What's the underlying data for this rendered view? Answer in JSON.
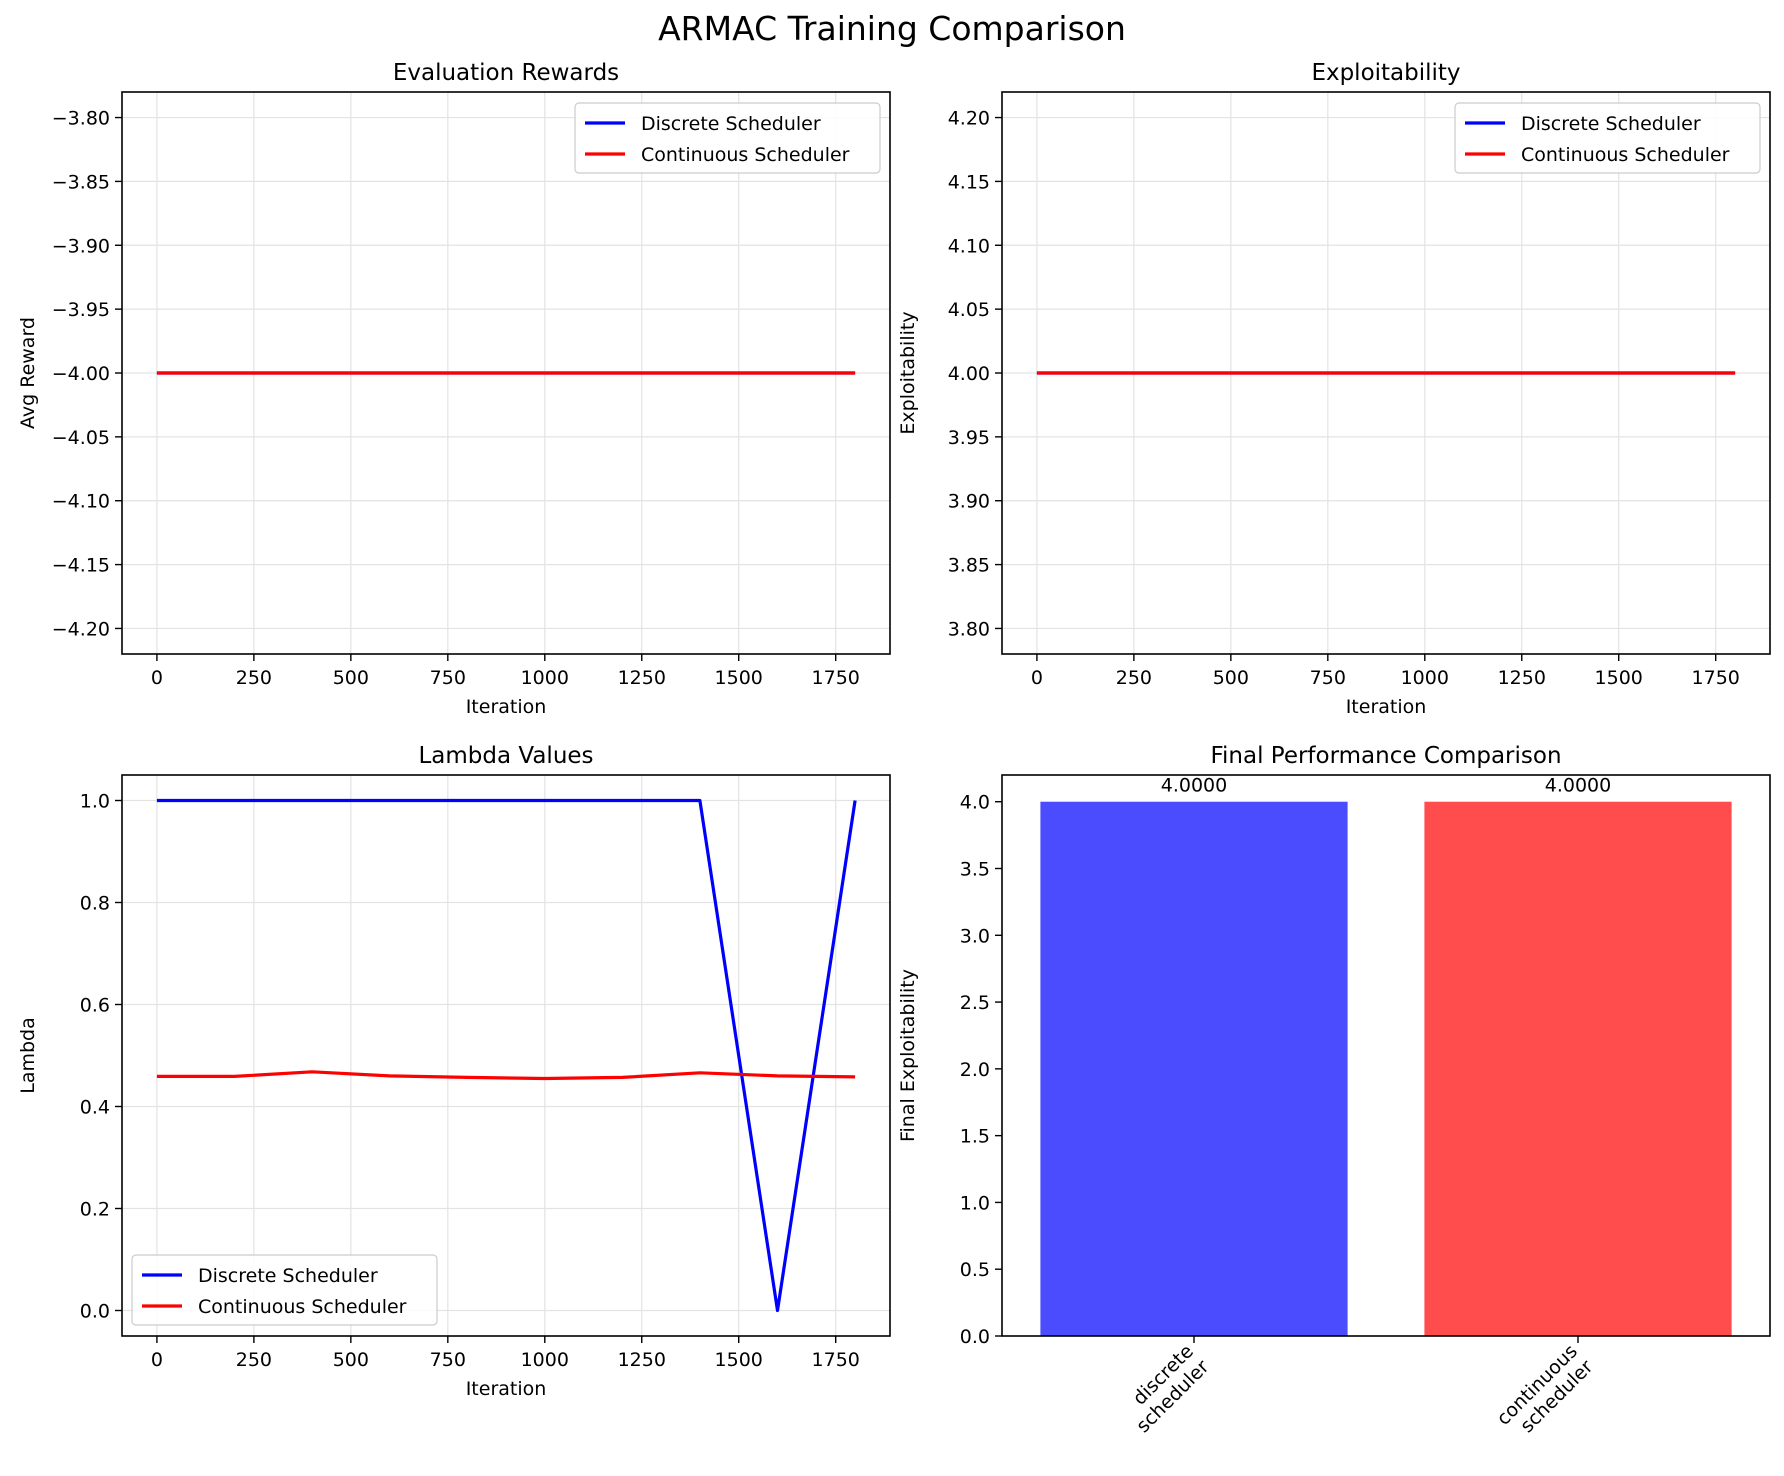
{
  "figure": {
    "title": "ARMAC Training Comparison"
  },
  "chart_data": [
    {
      "type": "line",
      "title": "Evaluation Rewards",
      "xlabel": "Iteration",
      "ylabel": "Avg Reward",
      "xlim": [
        -90,
        1890
      ],
      "ylim": [
        -4.22,
        -3.78
      ],
      "xticks": [
        0,
        250,
        500,
        750,
        1000,
        1250,
        1500,
        1750
      ],
      "yticks": [
        -3.8,
        -3.85,
        -3.9,
        -3.95,
        -4.0,
        -4.05,
        -4.1,
        -4.15,
        -4.2
      ],
      "ytick_labels": [
        "−3.80",
        "−3.85",
        "−3.90",
        "−3.95",
        "−4.00",
        "−4.05",
        "−4.10",
        "−4.15",
        "−4.20"
      ],
      "grid": true,
      "legend": "upper-right",
      "series": [
        {
          "name": "Discrete Scheduler",
          "color": "#0000ff",
          "x": [
            0,
            200,
            400,
            600,
            800,
            1000,
            1200,
            1400,
            1600,
            1800
          ],
          "y": [
            -4,
            -4,
            -4,
            -4,
            -4,
            -4,
            -4,
            -4,
            -4,
            -4
          ]
        },
        {
          "name": "Continuous Scheduler",
          "color": "#ff0000",
          "x": [
            0,
            200,
            400,
            600,
            800,
            1000,
            1200,
            1400,
            1600,
            1800
          ],
          "y": [
            -4,
            -4,
            -4,
            -4,
            -4,
            -4,
            -4,
            -4,
            -4,
            -4
          ]
        }
      ]
    },
    {
      "type": "line",
      "title": "Exploitability",
      "xlabel": "Iteration",
      "ylabel": "Exploitability",
      "xlim": [
        -90,
        1890
      ],
      "ylim": [
        3.78,
        4.22
      ],
      "xticks": [
        0,
        250,
        500,
        750,
        1000,
        1250,
        1500,
        1750
      ],
      "yticks": [
        3.8,
        3.85,
        3.9,
        3.95,
        4.0,
        4.05,
        4.1,
        4.15,
        4.2
      ],
      "ytick_labels": [
        "3.80",
        "3.85",
        "3.90",
        "3.95",
        "4.00",
        "4.05",
        "4.10",
        "4.15",
        "4.20"
      ],
      "grid": true,
      "legend": "upper-right",
      "series": [
        {
          "name": "Discrete Scheduler",
          "color": "#0000ff",
          "x": [
            0,
            200,
            400,
            600,
            800,
            1000,
            1200,
            1400,
            1600,
            1800
          ],
          "y": [
            4,
            4,
            4,
            4,
            4,
            4,
            4,
            4,
            4,
            4
          ]
        },
        {
          "name": "Continuous Scheduler",
          "color": "#ff0000",
          "x": [
            0,
            200,
            400,
            600,
            800,
            1000,
            1200,
            1400,
            1600,
            1800
          ],
          "y": [
            4,
            4,
            4,
            4,
            4,
            4,
            4,
            4,
            4,
            4
          ]
        }
      ]
    },
    {
      "type": "line",
      "title": "Lambda Values",
      "xlabel": "Iteration",
      "ylabel": "Lambda",
      "xlim": [
        -90,
        1890
      ],
      "ylim": [
        -0.05,
        1.05
      ],
      "xticks": [
        0,
        250,
        500,
        750,
        1000,
        1250,
        1500,
        1750
      ],
      "yticks": [
        0.0,
        0.2,
        0.4,
        0.6,
        0.8,
        1.0
      ],
      "ytick_labels": [
        "0.0",
        "0.2",
        "0.4",
        "0.6",
        "0.8",
        "1.0"
      ],
      "grid": true,
      "legend": "lower-left",
      "series": [
        {
          "name": "Discrete Scheduler",
          "color": "#0000ff",
          "x": [
            0,
            200,
            400,
            600,
            800,
            1000,
            1200,
            1400,
            1600,
            1800
          ],
          "y": [
            1,
            1,
            1,
            1,
            1,
            1,
            1,
            1,
            0,
            1
          ]
        },
        {
          "name": "Continuous Scheduler",
          "color": "#ff0000",
          "x": [
            0,
            200,
            400,
            600,
            800,
            1000,
            1200,
            1400,
            1600,
            1800
          ],
          "y": [
            0.459,
            0.459,
            0.468,
            0.46,
            0.457,
            0.455,
            0.457,
            0.466,
            0.46,
            0.458
          ]
        }
      ]
    },
    {
      "type": "bar",
      "title": "Final Performance Comparison",
      "xlabel": "",
      "ylabel": "Final Exploitability",
      "categories": [
        "discrete\nscheduler",
        "continuous\nscheduler"
      ],
      "values": [
        4.0,
        4.0
      ],
      "value_labels": [
        "4.0000",
        "4.0000"
      ],
      "colors": [
        "#4c4cff",
        "#ff4c4c"
      ],
      "ylim": [
        0,
        4.2
      ],
      "yticks": [
        0.0,
        0.5,
        1.0,
        1.5,
        2.0,
        2.5,
        3.0,
        3.5,
        4.0
      ],
      "ytick_labels": [
        "0.0",
        "0.5",
        "1.0",
        "1.5",
        "2.0",
        "2.5",
        "3.0",
        "3.5",
        "4.0"
      ],
      "grid": false,
      "xtick_rotation": 45
    }
  ]
}
